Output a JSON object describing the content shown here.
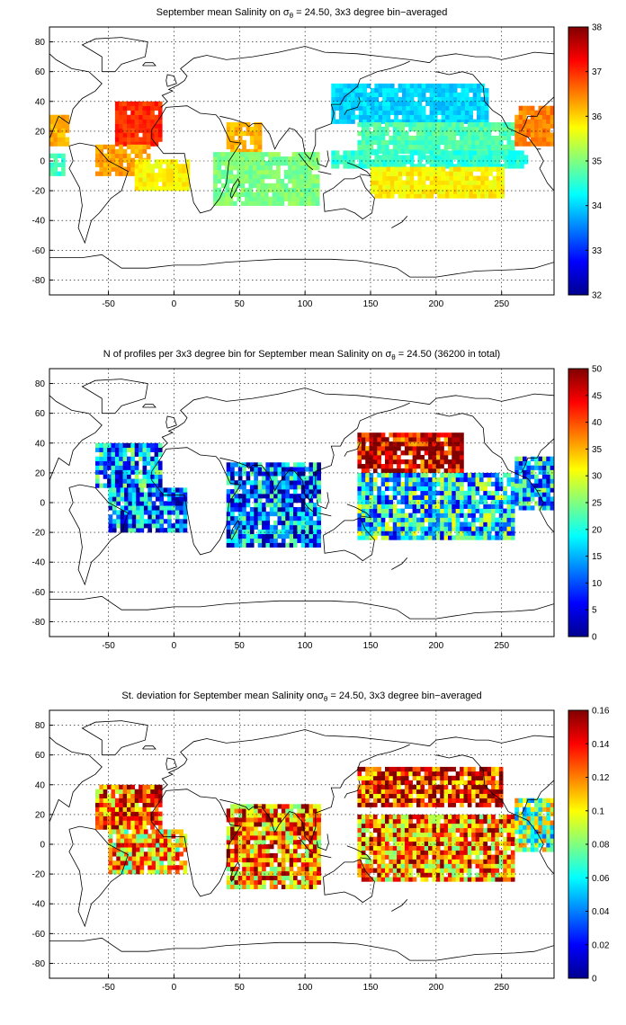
{
  "palette": {
    "jet": [
      "#00008f",
      "#0000ff",
      "#00ffff",
      "#ffff00",
      "#ff0000",
      "#800000"
    ],
    "land_outline": "#000000",
    "background": "#ffffff"
  },
  "chart_data": [
    {
      "type": "heatmap",
      "title_parts": [
        "September mean Salinity on ",
        "σ",
        "θ",
        " = 24.50, 3x3 degree bin−averaged"
      ],
      "x_ticks": [
        -50,
        0,
        50,
        100,
        150,
        200,
        250
      ],
      "y_ticks": [
        80,
        60,
        40,
        20,
        0,
        -20,
        -40,
        -60,
        -80
      ],
      "xlim": [
        -95,
        290
      ],
      "ylim": [
        -90,
        90
      ],
      "grid": true,
      "colorbar": {
        "min": 32,
        "max": 38,
        "ticks": [
          38,
          37,
          36,
          35,
          34,
          33,
          32
        ]
      },
      "regions": [
        {
          "lon": [
            -45,
            -10
          ],
          "lat": [
            10,
            40
          ],
          "value": 37.0
        },
        {
          "lon": [
            -60,
            -20
          ],
          "lat": [
            -10,
            10
          ],
          "value": 36.3
        },
        {
          "lon": [
            -30,
            10
          ],
          "lat": [
            -20,
            0
          ],
          "value": 35.8
        },
        {
          "lon": [
            -95,
            -80
          ],
          "lat": [
            10,
            30
          ],
          "value": 36.2
        },
        {
          "lon": [
            -95,
            -85
          ],
          "lat": [
            -10,
            5
          ],
          "value": 34.6
        },
        {
          "lon": [
            40,
            65
          ],
          "lat": [
            5,
            25
          ],
          "value": 36.2
        },
        {
          "lon": [
            30,
            110
          ],
          "lat": [
            -30,
            5
          ],
          "value": 35.0
        },
        {
          "lon": [
            120,
            240
          ],
          "lat": [
            25,
            50
          ],
          "value": 34.0
        },
        {
          "lon": [
            140,
            260
          ],
          "lat": [
            5,
            25
          ],
          "value": 34.7
        },
        {
          "lon": [
            120,
            270
          ],
          "lat": [
            -5,
            5
          ],
          "value": 34.5
        },
        {
          "lon": [
            150,
            250
          ],
          "lat": [
            -25,
            -5
          ],
          "value": 35.8
        },
        {
          "lon": [
            260,
            290
          ],
          "lat": [
            10,
            35
          ],
          "value": 36.5
        }
      ]
    },
    {
      "type": "heatmap",
      "title_parts": [
        "N of profiles per 3x3 degree bin for September mean Salinity on ",
        "σ",
        "θ",
        " = 24.50 (36200 in total)"
      ],
      "x_ticks": [
        -50,
        0,
        50,
        100,
        150,
        200,
        250
      ],
      "y_ticks": [
        80,
        60,
        40,
        20,
        0,
        -20,
        -40,
        -60,
        -80
      ],
      "xlim": [
        -95,
        290
      ],
      "ylim": [
        -90,
        90
      ],
      "grid": true,
      "colorbar": {
        "min": 0,
        "max": 50,
        "ticks": [
          50,
          45,
          40,
          35,
          30,
          25,
          20,
          15,
          10,
          5,
          0
        ]
      },
      "regions": [
        {
          "lon": [
            -60,
            -10
          ],
          "lat": [
            10,
            40
          ],
          "value": 14
        },
        {
          "lon": [
            -50,
            10
          ],
          "lat": [
            -20,
            10
          ],
          "value": 12
        },
        {
          "lon": [
            40,
            110
          ],
          "lat": [
            -30,
            25
          ],
          "value": 12
        },
        {
          "lon": [
            140,
            220
          ],
          "lat": [
            20,
            45
          ],
          "value": 48
        },
        {
          "lon": [
            140,
            260
          ],
          "lat": [
            -25,
            20
          ],
          "value": 18
        },
        {
          "lon": [
            260,
            290
          ],
          "lat": [
            -5,
            30
          ],
          "value": 15
        }
      ]
    },
    {
      "type": "heatmap",
      "title_parts": [
        "St. deviation for September mean Salinity on",
        "σ",
        "θ",
        " = 24.50, 3x3 degree bin−averaged"
      ],
      "x_ticks": [
        -50,
        0,
        50,
        100,
        150,
        200,
        250
      ],
      "y_ticks": [
        80,
        60,
        40,
        20,
        0,
        -20,
        -40,
        -60,
        -80
      ],
      "xlim": [
        -95,
        290
      ],
      "ylim": [
        -90,
        90
      ],
      "grid": true,
      "colorbar": {
        "min": 0,
        "max": 0.16,
        "ticks": [
          "0.16",
          "0.14",
          "0.12",
          "0.1",
          "0.08",
          "0.06",
          "0.04",
          "0.02",
          "0"
        ]
      },
      "regions": [
        {
          "lon": [
            -60,
            -10
          ],
          "lat": [
            10,
            40
          ],
          "value": 0.13
        },
        {
          "lon": [
            -50,
            10
          ],
          "lat": [
            -20,
            10
          ],
          "value": 0.11
        },
        {
          "lon": [
            40,
            110
          ],
          "lat": [
            -30,
            25
          ],
          "value": 0.12
        },
        {
          "lon": [
            140,
            250
          ],
          "lat": [
            25,
            50
          ],
          "value": 0.14
        },
        {
          "lon": [
            140,
            260
          ],
          "lat": [
            -25,
            20
          ],
          "value": 0.12
        },
        {
          "lon": [
            260,
            290
          ],
          "lat": [
            -5,
            30
          ],
          "value": 0.08
        }
      ]
    }
  ]
}
